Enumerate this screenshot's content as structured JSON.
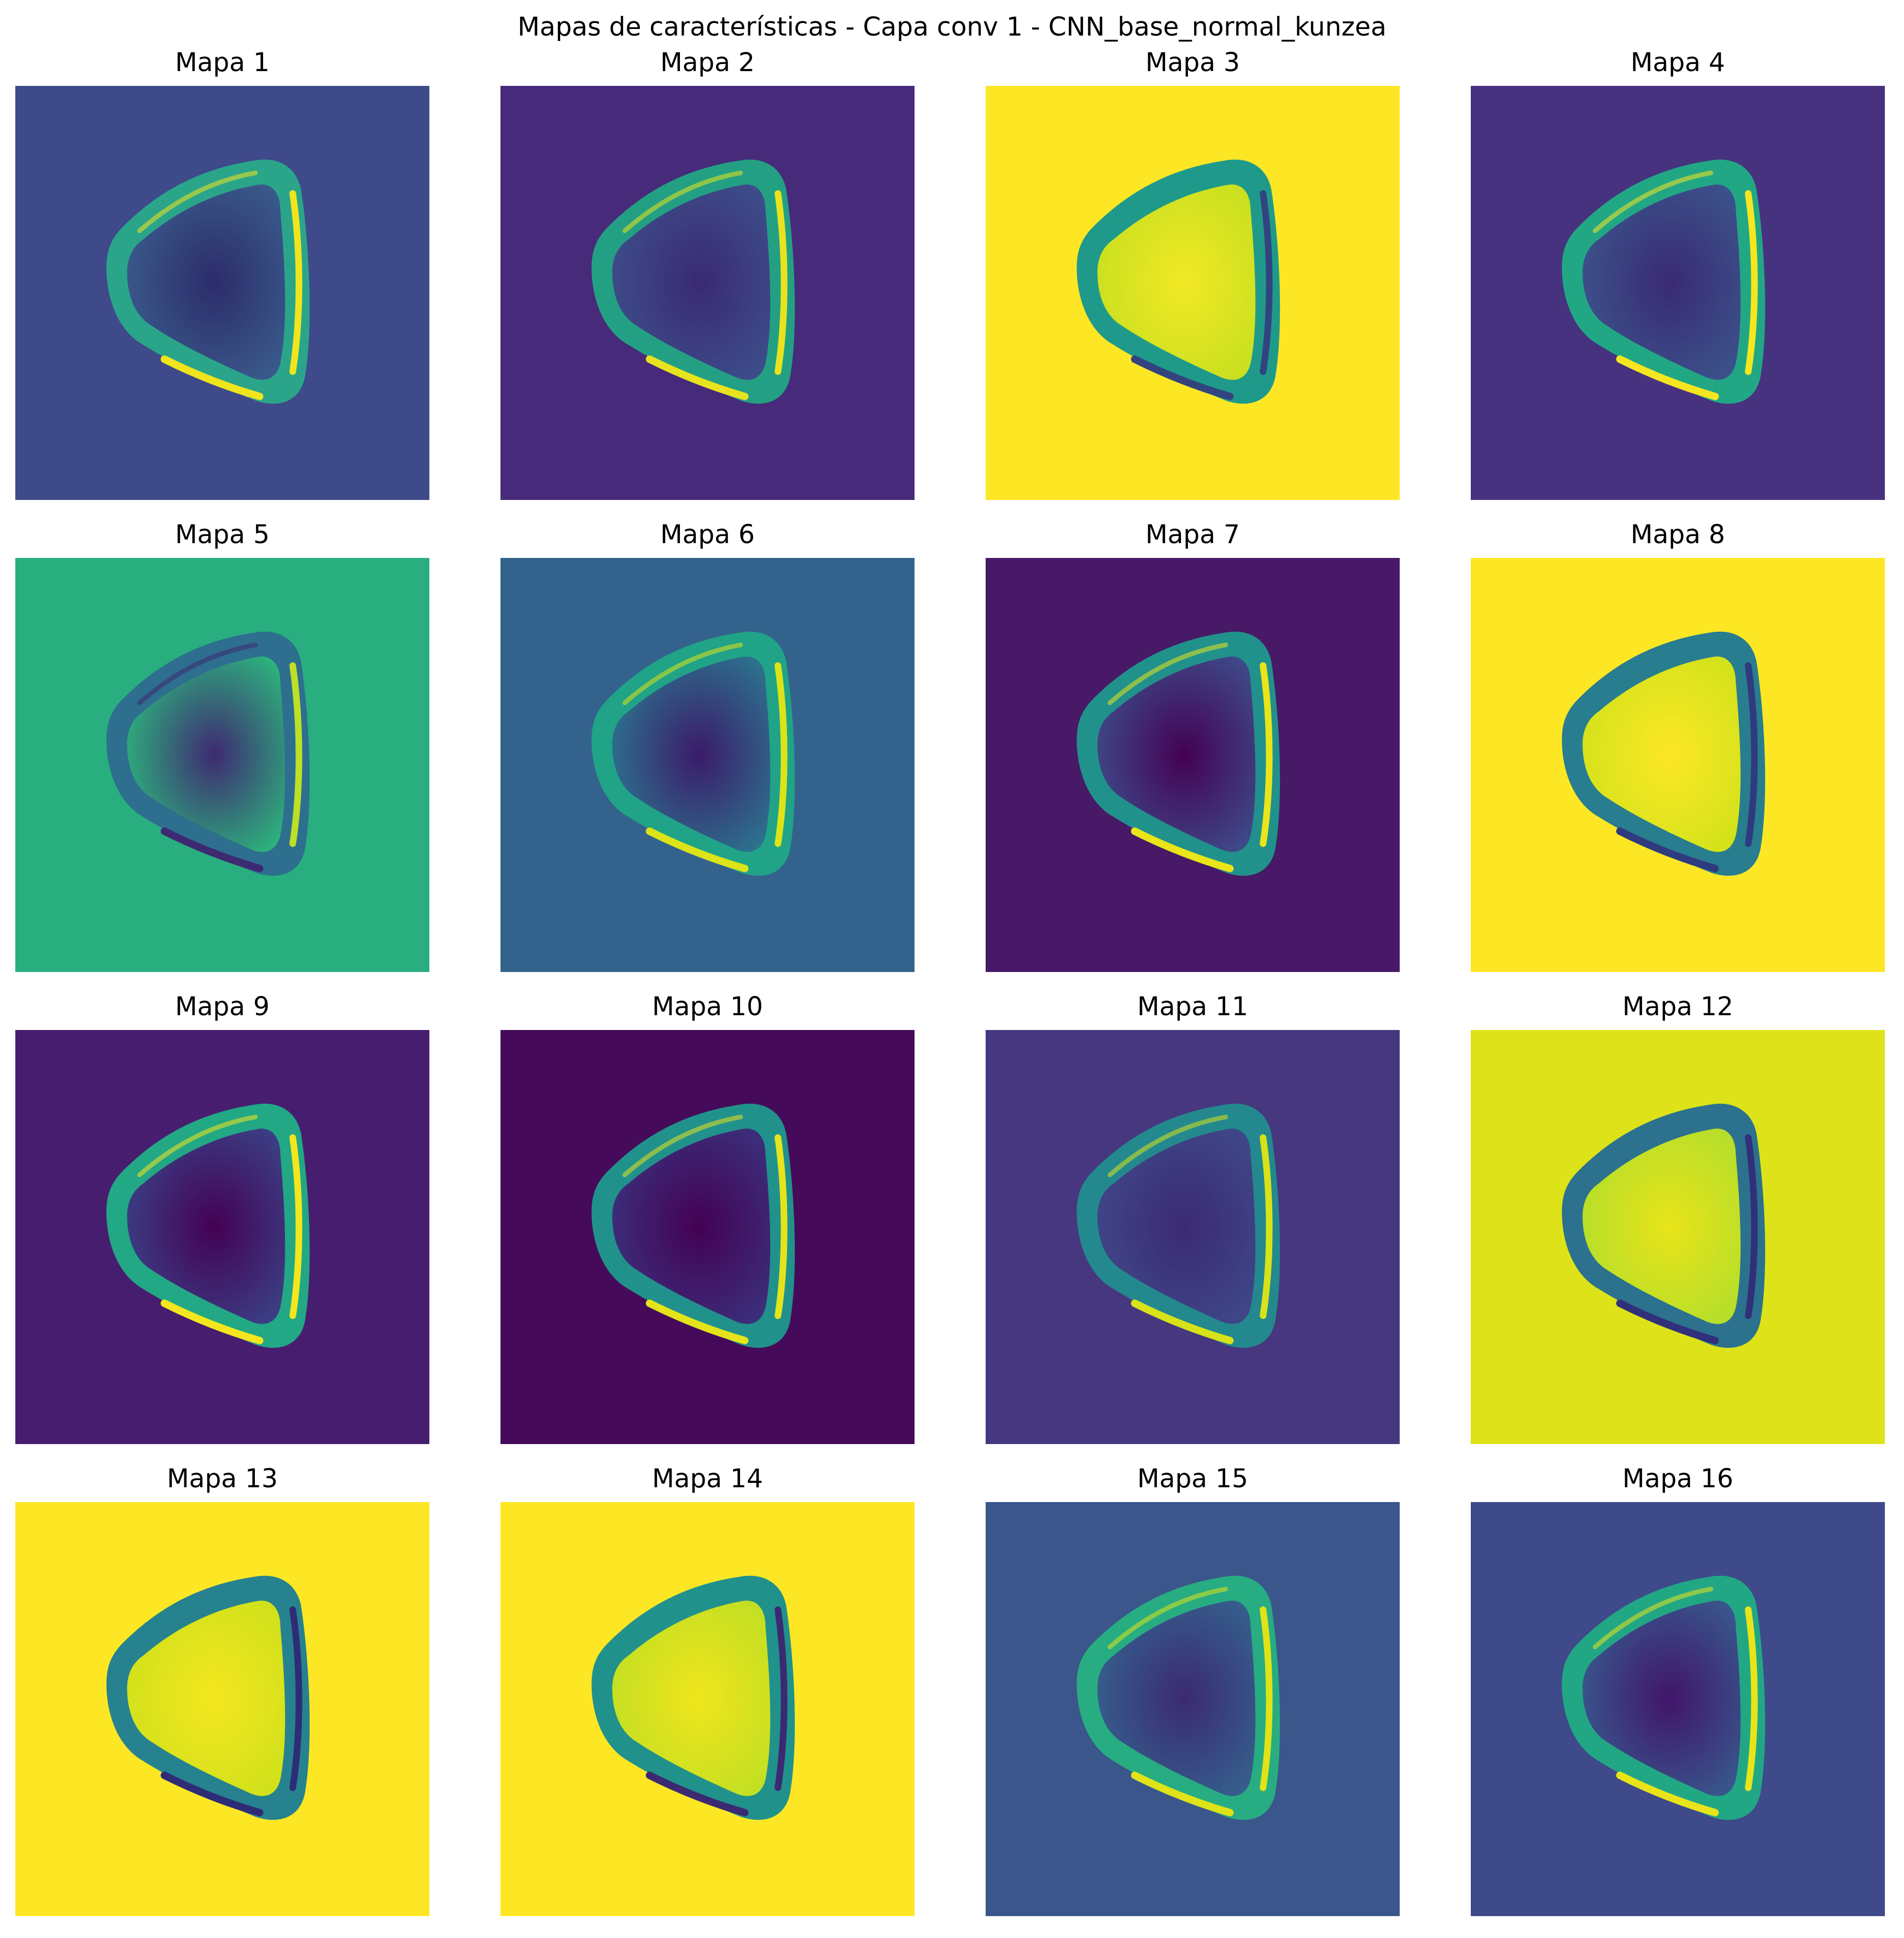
{
  "figure": {
    "suptitle": "Mapas de características - Capa conv 1 - CNN_base_normal_kunzea"
  },
  "maps": [
    {
      "title": "Mapa 1",
      "bg": "#3e4a89",
      "rim": "#2aa58a",
      "inner": "#3a5a8c",
      "bright": "#f0e51c",
      "dark": "#2c2c6a",
      "pattern": "ring"
    },
    {
      "title": "Mapa 2",
      "bg": "#472a7a",
      "rim": "#23a083",
      "inner": "#3d4d8a",
      "bright": "#e8e31e",
      "dark": "#3a2a72",
      "pattern": "ring"
    },
    {
      "title": "Mapa 3",
      "bg": "#fde725",
      "rim": "#1f9a8a",
      "inner": "#c8e020",
      "bright": "#f2e824",
      "dark": "#32447f",
      "pattern": "filled"
    },
    {
      "title": "Mapa 4",
      "bg": "#46327e",
      "rim": "#22a785",
      "inner": "#3b528b",
      "bright": "#f6e620",
      "dark": "#3a2a72",
      "pattern": "ring"
    },
    {
      "title": "Mapa 5",
      "bg": "#29af7f",
      "rim": "#2e6e8e",
      "inner": "#2db27d",
      "bright": "#bddf26",
      "dark": "#3e2a72",
      "pattern": "inverse"
    },
    {
      "title": "Mapa 6",
      "bg": "#33638d",
      "rim": "#20a386",
      "inner": "#2c728e",
      "bright": "#dce319",
      "dark": "#3b1b6a",
      "pattern": "ring"
    },
    {
      "title": "Mapa 7",
      "bg": "#471966",
      "rim": "#21918c",
      "inner": "#3e4a89",
      "bright": "#e9e51a",
      "dark": "#440154",
      "pattern": "ring"
    },
    {
      "title": "Mapa 8",
      "bg": "#fde725",
      "rim": "#287d8e",
      "inner": "#d2e21b",
      "bright": "#fde725",
      "dark": "#2e3b7f",
      "pattern": "filled"
    },
    {
      "title": "Mapa 9",
      "bg": "#471e6f",
      "rim": "#22a884",
      "inner": "#3b3f85",
      "bright": "#f4e61e",
      "dark": "#440154",
      "pattern": "ring"
    },
    {
      "title": "Mapa 10",
      "bg": "#450b5a",
      "rim": "#21918c",
      "inner": "#3b2f7b",
      "bright": "#e5e41b",
      "dark": "#440154",
      "pattern": "ring"
    },
    {
      "title": "Mapa 11",
      "bg": "#46377f",
      "rim": "#23898e",
      "inner": "#3f4788",
      "bright": "#d8e219",
      "dark": "#3b2a72",
      "pattern": "ring"
    },
    {
      "title": "Mapa 12",
      "bg": "#dde318",
      "rim": "#2c718e",
      "inner": "#b5de2b",
      "bright": "#e8e419",
      "dark": "#31307a",
      "pattern": "filled"
    },
    {
      "title": "Mapa 13",
      "bg": "#fde725",
      "rim": "#26828e",
      "inner": "#d0e11c",
      "bright": "#f4e61e",
      "dark": "#2f2c77",
      "pattern": "filled"
    },
    {
      "title": "Mapa 14",
      "bg": "#fde725",
      "rim": "#21918c",
      "inner": "#c2df23",
      "bright": "#f0e51c",
      "dark": "#3b2a72",
      "pattern": "filled"
    },
    {
      "title": "Mapa 15",
      "bg": "#3a568b",
      "rim": "#27ad81",
      "inner": "#355f8d",
      "bright": "#dfe318",
      "dark": "#3b2a72",
      "pattern": "ring"
    },
    {
      "title": "Mapa 16",
      "bg": "#3e4a89",
      "rim": "#22a785",
      "inner": "#38578c",
      "bright": "#e8e419",
      "dark": "#41156a",
      "pattern": "ring"
    }
  ]
}
